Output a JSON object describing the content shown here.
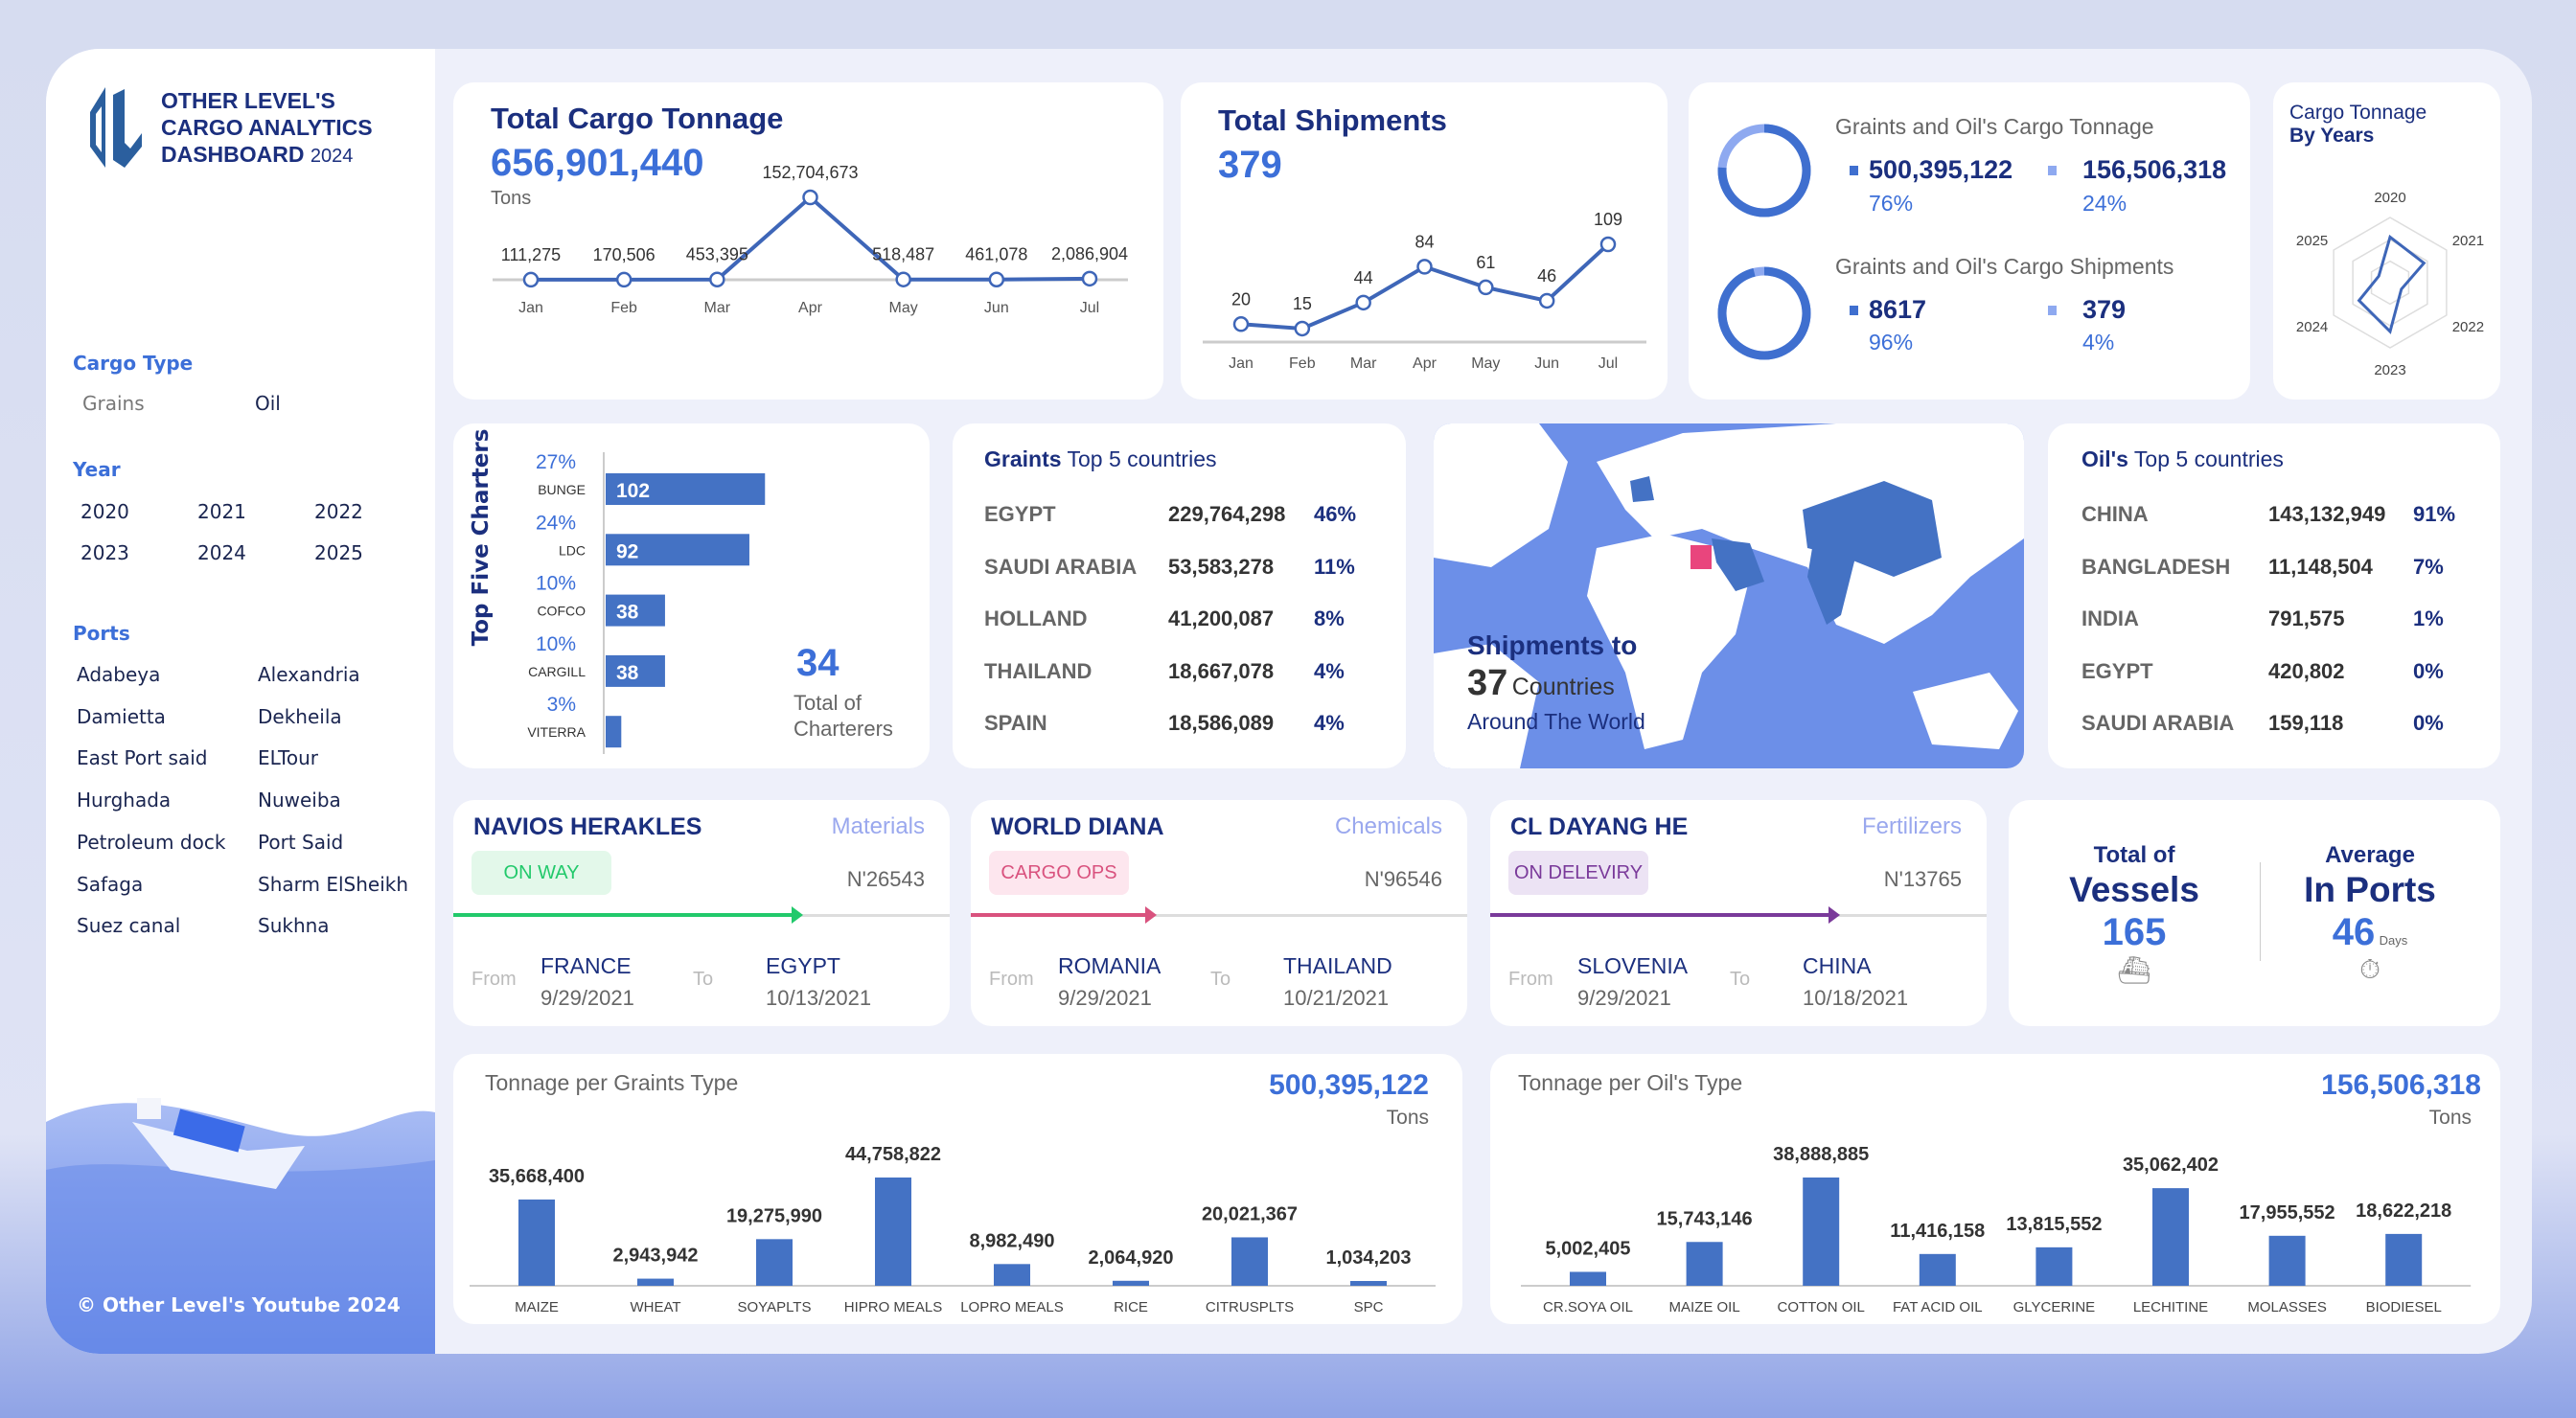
{
  "sidebar": {
    "logo_line1": "OTHER LEVEL'S",
    "logo_line2": "CARGO ANALYTICS",
    "logo_line3": "DASHBOARD",
    "logo_year": "2024",
    "cargo_type_label": "Cargo Type",
    "cargo_types": [
      "Grains",
      "Oil"
    ],
    "year_label": "Year",
    "years": [
      "2020",
      "2021",
      "2022",
      "2023",
      "2024",
      "2025"
    ],
    "ports_label": "Ports",
    "ports": [
      "Adabeya",
      "Alexandria",
      "Damietta",
      "Dekheila",
      "East Port said",
      "ELTour",
      "Hurghada",
      "Nuweiba",
      "Petroleum  dock",
      "Port Said",
      "Safaga",
      "Sharm ElSheikh",
      "Suez canal",
      "Sukhna"
    ],
    "footer": "© Other Level's Youtube 2024"
  },
  "tonnage": {
    "title": "Total Cargo Tonnage",
    "value": "656,901,440",
    "unit": "Tons"
  },
  "shipments": {
    "title": "Total Shipments",
    "value": "379"
  },
  "split": {
    "tonnage_title": "Graints and Oil's Cargo Tonnage",
    "tonnage_grains": "500,395,122",
    "tonnage_grains_pct": "76%",
    "tonnage_oil": "156,506,318",
    "tonnage_oil_pct": "24%",
    "tonnage_fraction": 0.76,
    "ship_title": "Graints and Oil's Cargo Shipments",
    "ship_grains": "8617",
    "ship_grains_pct": "96%",
    "ship_oil": "379",
    "ship_oil_pct": "4%",
    "ship_fraction": 0.96
  },
  "radar": {
    "title1": "Cargo Tonnage",
    "title2": "By Years"
  },
  "charters": {
    "title": "Top Five Charters",
    "total": "34",
    "total_label1": "Total of",
    "total_label2": "Charterers",
    "items": [
      {
        "name": "BUNGE",
        "pct": "27%",
        "value": 102,
        "label": "102"
      },
      {
        "name": "LDC",
        "pct": "24%",
        "value": 92,
        "label": "92"
      },
      {
        "name": "COFCO",
        "pct": "10%",
        "value": 38,
        "label": "38"
      },
      {
        "name": "CARGILL",
        "pct": "10%",
        "value": 38,
        "label": "38"
      },
      {
        "name": "VITERRA",
        "pct": "3%",
        "value": 10,
        "label": ""
      }
    ]
  },
  "grains_top": {
    "title_bold": "Graints",
    "title_rest": " Top 5 countries",
    "rows": [
      [
        "EGYPT",
        "229,764,298",
        "46%"
      ],
      [
        "SAUDI ARABIA",
        "53,583,278",
        "11%"
      ],
      [
        "HOLLAND",
        "41,200,087",
        "8%"
      ],
      [
        "THAILAND",
        "18,667,078",
        "4%"
      ],
      [
        "SPAIN",
        "18,586,089",
        "4%"
      ]
    ]
  },
  "map": {
    "line1": "Shipments to",
    "count": "37",
    "count_label": "Countries",
    "line3": "Around The World"
  },
  "oil_top": {
    "title_bold": "Oil's",
    "title_rest": " Top 5 countries",
    "rows": [
      [
        "CHINA",
        "143,132,949",
        "91%"
      ],
      [
        "BANGLADESH",
        "11,148,504",
        "7%"
      ],
      [
        "INDIA",
        "791,575",
        "1%"
      ],
      [
        "EGYPT",
        "420,802",
        "0%"
      ],
      [
        "SAUDI ARABIA",
        "159,118",
        "0%"
      ]
    ]
  },
  "vessels": [
    {
      "name": "NAVIOS HERAKLES",
      "category": "Materials",
      "status": "ON WAY",
      "number": "N'26543",
      "from_label": "From",
      "to_label": "To",
      "from": "FRANCE",
      "from_date": "9/29/2021",
      "to": "EGYPT",
      "to_date": "10/13/2021",
      "progress": 0.69,
      "color": "#22c96b",
      "badge_bg": "#e3f8ea"
    },
    {
      "name": "WORLD DIANA",
      "category": "Chemicals",
      "status": "CARGO OPS",
      "number": "N'96546",
      "from_label": "From",
      "to_label": "To",
      "from": "ROMANIA",
      "from_date": "9/29/2021",
      "to": "THAILAND",
      "to_date": "10/21/2021",
      "progress": 0.36,
      "color": "#d9527e",
      "badge_bg": "#fde6ee"
    },
    {
      "name": "CL DAYANG HE",
      "category": "Fertilizers",
      "status": "ON DELEVIRY",
      "number": "N'13765",
      "from_label": "From",
      "to_label": "To",
      "from": "SLOVENIA",
      "from_date": "9/29/2021",
      "to": "CHINA",
      "to_date": "10/18/2021",
      "progress": 0.69,
      "color": "#7a3a9a",
      "badge_bg": "#ece3f4"
    }
  ],
  "stats": {
    "vessels_l1": "Total of",
    "vessels_l2": "Vessels",
    "vessels_value": "165",
    "ports_l1": "Average",
    "ports_l2": "In Ports",
    "ports_value": "46",
    "ports_unit": "Days"
  },
  "chart_data": [
    {
      "type": "line",
      "title": "Total Cargo Tonnage",
      "categories": [
        "Jan",
        "Feb",
        "Mar",
        "Apr",
        "May",
        "Jun",
        "Jul"
      ],
      "values": [
        111275,
        170506,
        453395,
        152704673,
        518487,
        461078,
        2086904
      ],
      "labels": [
        "111,275",
        "170,506",
        "453,395",
        "152,704,673",
        "518,487",
        "461,078",
        "2,086,904"
      ]
    },
    {
      "type": "line",
      "title": "Total Shipments",
      "categories": [
        "Jan",
        "Feb",
        "Mar",
        "Apr",
        "May",
        "Jun",
        "Jul"
      ],
      "values": [
        20,
        15,
        44,
        84,
        61,
        46,
        109
      ],
      "labels": [
        "20",
        "15",
        "44",
        "84",
        "61",
        "46",
        "109"
      ]
    },
    {
      "type": "radar",
      "title": "Cargo Tonnage By Years",
      "categories": [
        "2020",
        "2021",
        "2022",
        "2023",
        "2024",
        "2025"
      ],
      "values": [
        0.7,
        0.6,
        0.2,
        0.75,
        0.55,
        0.2
      ]
    },
    {
      "type": "bar",
      "title": "Tonnage per Graints Type",
      "total": "500,395,122",
      "unit": "Tons",
      "categories": [
        "MAIZE",
        "WHEAT",
        "SOYAPLTS",
        "HIPRO MEALS",
        "LOPRO MEALS",
        "RICE",
        "CITRUSPLTS",
        "SPC"
      ],
      "values": [
        35668400,
        2943942,
        19275990,
        44758822,
        8982490,
        2064920,
        20021367,
        1034203
      ],
      "labels": [
        "35,668,400",
        "2,943,942",
        "19,275,990",
        "44,758,822",
        "8,982,490",
        "2,064,920",
        "20,021,367",
        "1,034,203"
      ]
    },
    {
      "type": "bar",
      "title": "Tonnage per Oil's Type",
      "total": "156,506,318",
      "unit": "Tons",
      "categories": [
        "CR.SOYA OIL",
        "MAIZE OIL",
        "COTTON OIL",
        "FAT ACID OIL",
        "GLYCERINE",
        "LECHITINE",
        "MOLASSES",
        "BIODIESEL"
      ],
      "values": [
        5002405,
        15743146,
        38888885,
        11416158,
        13815552,
        35062402,
        17955552,
        18622218
      ],
      "labels": [
        "5,002,405",
        "15,743,146",
        "38,888,885",
        "11,416,158",
        "13,815,552",
        "35,062,402",
        "17,955,552",
        "18,622,218"
      ]
    }
  ],
  "colors": {
    "navy": "#1b2f7e",
    "accent": "#3c6fd8",
    "bar": "#4472c4",
    "light": "#8ea9f0",
    "egypt": "#e9457d"
  }
}
